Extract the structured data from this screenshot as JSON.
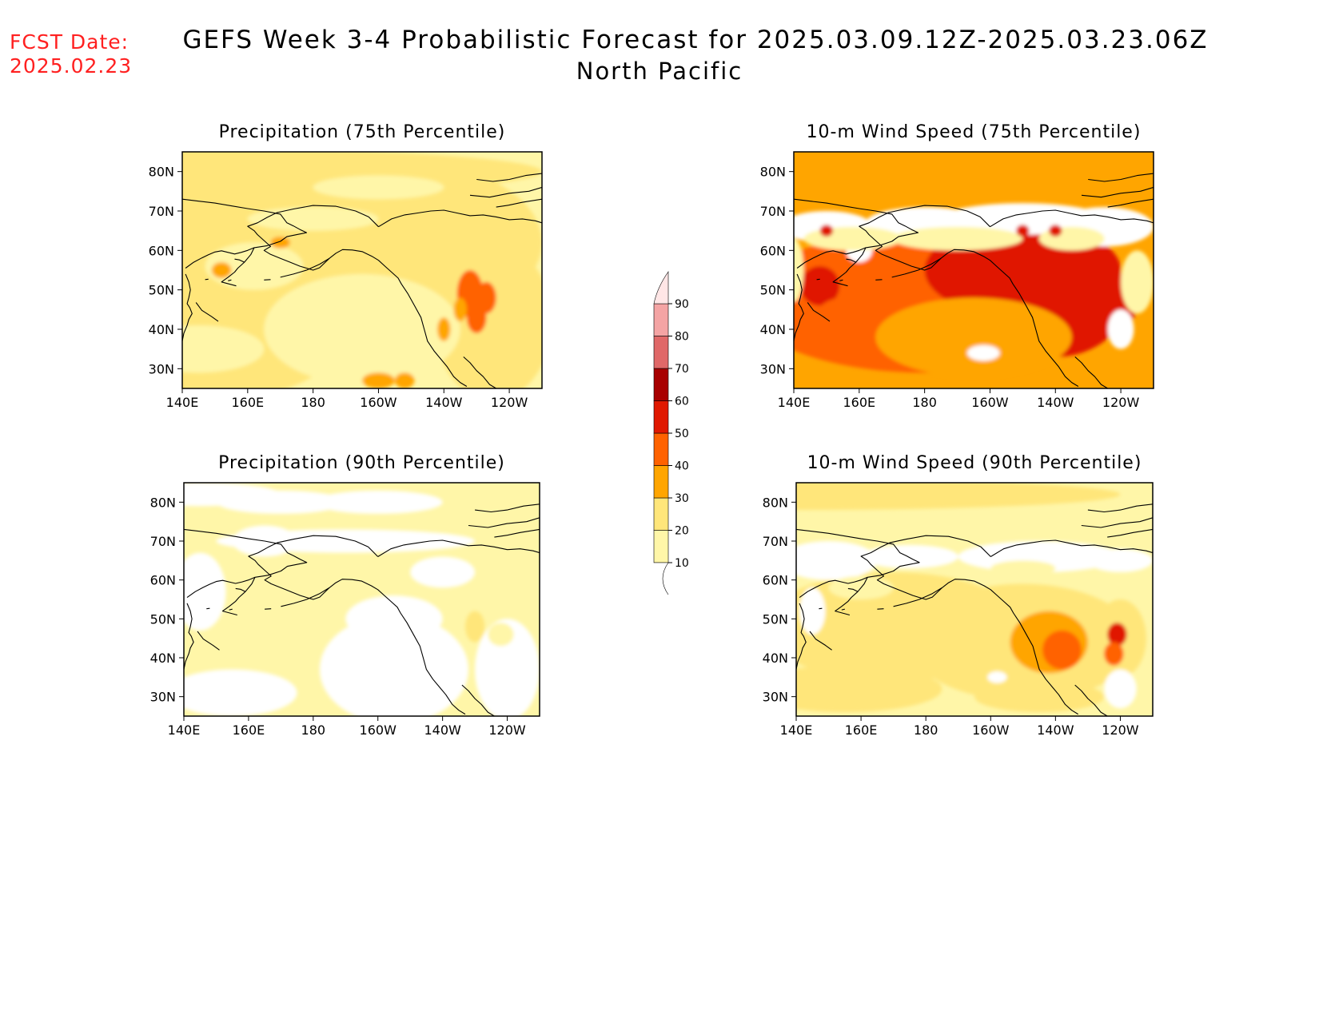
{
  "header": {
    "fcst_label": "FCST Date:",
    "fcst_date": "2025.02.23",
    "title": "GEFS Week 3-4 Probabilistic Forecast for 2025.03.09.12Z-2025.03.23.06Z",
    "subtitle": "North Pacific"
  },
  "axes": {
    "lon_labels": [
      "140E",
      "160E",
      "180",
      "160W",
      "140W",
      "120W"
    ],
    "lat_labels": [
      "80N",
      "70N",
      "60N",
      "50N",
      "40N",
      "30N"
    ]
  },
  "panels": [
    {
      "title": "Precipitation (75th Percentile)",
      "field": "precip75"
    },
    {
      "title": "10-m Wind Speed (75th Percentile)",
      "field": "wind75"
    },
    {
      "title": "Precipitation (90th Percentile)",
      "field": "precip90"
    },
    {
      "title": "10-m Wind Speed (90th Percentile)",
      "field": "wind90"
    }
  ],
  "colorbar": {
    "levels": [
      "10",
      "20",
      "30",
      "40",
      "50",
      "60",
      "70",
      "80",
      "90"
    ],
    "colors": [
      "#ffffff",
      "#fff6a8",
      "#ffe67a",
      "#ffa500",
      "#ff6200",
      "#e01800",
      "#a80000",
      "#e06868",
      "#f4a4a4",
      "#ffe6e6"
    ]
  }
}
